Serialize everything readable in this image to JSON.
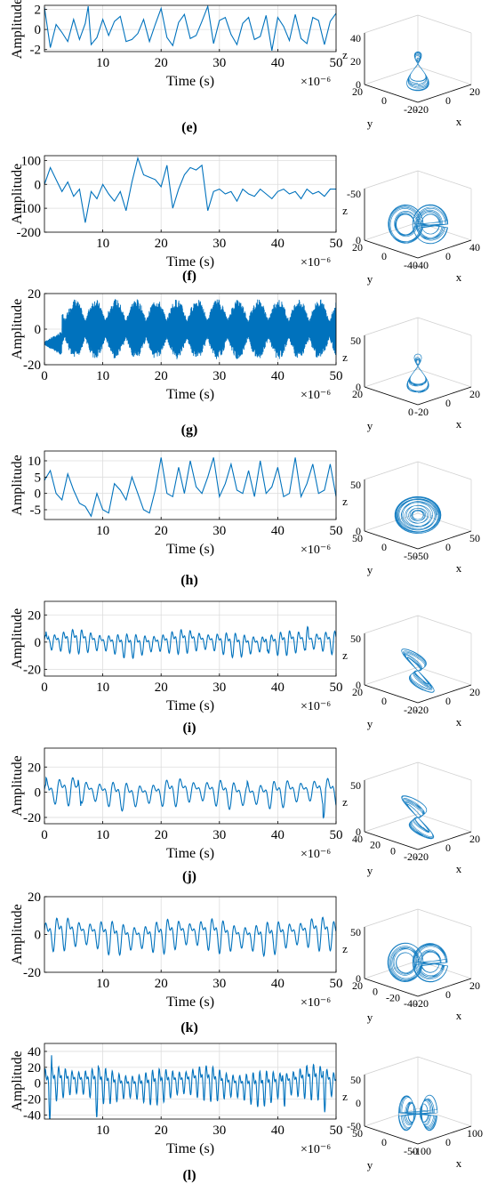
{
  "chart_data": [
    {
      "panel": "e",
      "label": "(e)",
      "type": "line",
      "xlabel": "Time (s)",
      "ylabel": "Amplitude",
      "x_exponent": "×10⁻⁶",
      "xlim": [
        0,
        50
      ],
      "ylim": [
        -2.2,
        2.4
      ],
      "xticks": [
        10,
        20,
        30,
        40,
        50
      ],
      "yticks": [
        2,
        0,
        -2
      ],
      "grid": true,
      "series_style": "spiky",
      "x": [
        0,
        1,
        2,
        3,
        4,
        5,
        6,
        7,
        7.5,
        8,
        9,
        10,
        11,
        12,
        13,
        14,
        15,
        16,
        17,
        18,
        19,
        20,
        21,
        22,
        23,
        24,
        25,
        26,
        27,
        28,
        29,
        30,
        31,
        32,
        33,
        34,
        35,
        36,
        37,
        38,
        39,
        40,
        41,
        42,
        43,
        44,
        45,
        46,
        47,
        48,
        49,
        50
      ],
      "y": [
        2.2,
        -1.8,
        0.5,
        -0.3,
        -1.2,
        1.0,
        -1.0,
        0.6,
        2.3,
        -1.5,
        -0.8,
        1.0,
        -0.6,
        0.8,
        1.3,
        -1.2,
        -1.0,
        -0.4,
        1.0,
        -1.2,
        0.5,
        2.1,
        -0.8,
        -1.6,
        0.7,
        1.5,
        -0.9,
        -0.6,
        0.8,
        2.3,
        -1.4,
        0.9,
        1.2,
        -0.5,
        -1.5,
        0.6,
        1.2,
        -1.0,
        -0.7,
        1.4,
        -2.1,
        1.2,
        0.3,
        -1.1,
        1.5,
        -0.9,
        -1.4,
        1.2,
        0.9,
        -1.5,
        0.8,
        1.6
      ]
    },
    {
      "panel": "f",
      "label": "(f)",
      "type": "line",
      "xlabel": "Time (s)",
      "ylabel": "Amplitude",
      "x_exponent": "×10⁻⁶",
      "xlim": [
        0,
        50
      ],
      "ylim": [
        -200,
        120
      ],
      "xticks": [
        10,
        20,
        30,
        40,
        50
      ],
      "yticks": [
        100,
        0,
        -100,
        -200
      ],
      "grid": true,
      "series_style": "spiky",
      "x": [
        0,
        1,
        2,
        3,
        4,
        5,
        6,
        7,
        8,
        9,
        10,
        11,
        12,
        13,
        14,
        15,
        16,
        17,
        18,
        19,
        20,
        21,
        22,
        23,
        24,
        25,
        26,
        27,
        28,
        29,
        30,
        31,
        32,
        33,
        34,
        35,
        36,
        37,
        38,
        39,
        40,
        41,
        42,
        43,
        44,
        45,
        46,
        47,
        48,
        49,
        50
      ],
      "y": [
        0,
        70,
        20,
        -30,
        10,
        -50,
        -20,
        -160,
        -30,
        -60,
        0,
        -40,
        -70,
        -30,
        -110,
        10,
        110,
        40,
        30,
        20,
        -10,
        80,
        -100,
        -20,
        40,
        70,
        60,
        80,
        -110,
        -30,
        -20,
        -40,
        -30,
        -70,
        -20,
        -40,
        -50,
        -20,
        -40,
        -60,
        -30,
        -20,
        -40,
        -30,
        -60,
        -20,
        -40,
        -30,
        -50,
        -20,
        -20
      ]
    },
    {
      "panel": "g",
      "label": "(g)",
      "type": "line",
      "xlabel": "Time (s)",
      "ylabel": "Amplitude",
      "x_exponent": "×10⁻⁶",
      "xlim": [
        0,
        50
      ],
      "ylim": [
        -20,
        20
      ],
      "xticks": [
        0,
        10,
        20,
        30,
        40,
        50
      ],
      "yticks": [
        20,
        0,
        -20
      ],
      "grid": true,
      "series_style": "dense",
      "amplitude": 17,
      "segments": [
        [
          0,
          3
        ],
        [
          3,
          6
        ],
        [
          6,
          12
        ],
        [
          12,
          18
        ],
        [
          18,
          24
        ],
        [
          24,
          31
        ],
        [
          31,
          40
        ],
        [
          40,
          50
        ]
      ]
    },
    {
      "panel": "h",
      "label": "(h)",
      "type": "line",
      "xlabel": "Time (s)",
      "ylabel": "Amplitude",
      "x_exponent": "×10⁻⁶",
      "xlim": [
        0,
        50
      ],
      "ylim": [
        -8,
        13
      ],
      "xticks": [
        10,
        20,
        30,
        40,
        50
      ],
      "yticks": [
        10,
        5,
        0,
        -5
      ],
      "grid": true,
      "series_style": "spiky",
      "x": [
        0,
        1,
        2,
        3,
        4,
        5,
        6,
        7,
        8,
        9,
        10,
        11,
        12,
        13,
        14,
        15,
        16,
        17,
        18,
        19,
        20,
        21,
        22,
        23,
        24,
        25,
        26,
        27,
        28,
        29,
        30,
        31,
        32,
        33,
        34,
        35,
        36,
        37,
        38,
        39,
        40,
        41,
        42,
        43,
        44,
        45,
        46,
        47,
        48,
        49,
        50
      ],
      "y": [
        4,
        7,
        0,
        -2,
        6,
        1,
        -3,
        -4,
        -7,
        0,
        -5,
        -6,
        3,
        1,
        -2,
        5,
        0,
        -5,
        -6,
        1,
        11,
        0,
        -1,
        8,
        0,
        10,
        2,
        0,
        5,
        11,
        -1,
        3,
        9,
        1,
        0,
        7,
        -1,
        10,
        0,
        2,
        8,
        -1,
        0,
        11,
        -1,
        3,
        9,
        0,
        1,
        9,
        -1
      ]
    },
    {
      "panel": "i",
      "label": "(i)",
      "type": "line",
      "xlabel": "Time (s)",
      "ylabel": "Amplitude",
      "x_exponent": "×10⁻⁶",
      "xlim": [
        0,
        50
      ],
      "ylim": [
        -25,
        30
      ],
      "xticks": [
        0,
        10,
        20,
        30,
        40,
        50
      ],
      "yticks": [
        20,
        0,
        -20
      ],
      "grid": true,
      "series_style": "wave",
      "period": 1.55,
      "amplitude": 12,
      "burst_at": [
        0.5,
        38,
        45
      ]
    },
    {
      "panel": "j",
      "label": "(j)",
      "type": "line",
      "xlabel": "Time (s)",
      "ylabel": "Amplitude",
      "x_exponent": "×10⁻⁶",
      "xlim": [
        0,
        50
      ],
      "ylim": [
        -25,
        35
      ],
      "xticks": [
        0,
        10,
        20,
        30,
        40,
        50
      ],
      "yticks": [
        20,
        0,
        -20
      ],
      "grid": true,
      "series_style": "wave",
      "period": 2.3,
      "amplitude": 15,
      "burst_at": [
        0.5,
        6,
        35,
        48
      ]
    },
    {
      "panel": "k",
      "label": "(k)",
      "type": "line",
      "xlabel": "Time (s)",
      "ylabel": "Amplitude",
      "x_exponent": "×10⁻⁶",
      "xlim": [
        0,
        50
      ],
      "ylim": [
        -20,
        20
      ],
      "xticks": [
        10,
        20,
        30,
        40,
        50
      ],
      "yticks": [
        20,
        0,
        -20
      ],
      "grid": true,
      "series_style": "wave",
      "period": 1.9,
      "amplitude": 12,
      "burst_at": []
    },
    {
      "panel": "l",
      "label": "(l)",
      "type": "line",
      "xlabel": "Time (s)",
      "ylabel": "Amplitude",
      "x_exponent": "×10⁻⁶",
      "xlim": [
        0,
        50
      ],
      "ylim": [
        -45,
        50
      ],
      "xticks": [
        10,
        20,
        30,
        40,
        50
      ],
      "yticks": [
        40,
        20,
        0,
        -20,
        -40
      ],
      "grid": true,
      "series_style": "wave",
      "period": 1.15,
      "amplitude": 30,
      "burst_at": [
        1,
        9,
        41,
        48
      ]
    }
  ],
  "phase_portraits": [
    {
      "panel": "e",
      "type": "attractor-3d",
      "axes": [
        "x",
        "y",
        "z"
      ],
      "z_ticks": [
        "0",
        "20",
        "40"
      ],
      "x_ticks": [
        "-20",
        "0",
        "20"
      ],
      "y_ticks": [
        "20",
        "0",
        "-20"
      ],
      "shape": "narrow"
    },
    {
      "panel": "f",
      "type": "attractor-3d",
      "axes": [
        "x",
        "y",
        "z"
      ],
      "z_ticks": [
        "0",
        "-50"
      ],
      "x_ticks": [
        "-40",
        "0",
        "40"
      ],
      "y_ticks": [
        "20",
        "0",
        "-40"
      ],
      "shape": "wide"
    },
    {
      "panel": "g",
      "type": "attractor-3d",
      "axes": [
        "x",
        "y",
        "z"
      ],
      "z_ticks": [
        "0",
        "50"
      ],
      "x_ticks": [
        "-20",
        "0",
        "20"
      ],
      "y_ticks": [
        "20",
        "0"
      ],
      "shape": "narrow"
    },
    {
      "panel": "h",
      "type": "attractor-3d",
      "axes": [
        "x",
        "y",
        "z"
      ],
      "z_ticks": [
        "0",
        "50"
      ],
      "x_ticks": [
        "-50",
        "0",
        "50"
      ],
      "y_ticks": [
        "50",
        "0",
        "-50"
      ],
      "shape": "open"
    },
    {
      "panel": "i",
      "type": "attractor-3d",
      "axes": [
        "x",
        "y",
        "z"
      ],
      "z_ticks": [
        "0",
        "50"
      ],
      "x_ticks": [
        "-20",
        "0",
        "20"
      ],
      "y_ticks": [
        "20",
        "0",
        "-20"
      ],
      "shape": "loop"
    },
    {
      "panel": "j",
      "type": "attractor-3d",
      "axes": [
        "x",
        "y",
        "z"
      ],
      "z_ticks": [
        "0",
        "50"
      ],
      "x_ticks": [
        "-20",
        "0",
        "20"
      ],
      "y_ticks": [
        "40",
        "20",
        "0",
        "-20"
      ],
      "shape": "loop"
    },
    {
      "panel": "k",
      "type": "attractor-3d",
      "axes": [
        "x",
        "y",
        "z"
      ],
      "z_ticks": [
        "0",
        "50"
      ],
      "x_ticks": [
        "-20",
        "0",
        "20"
      ],
      "y_ticks": [
        "20",
        "0",
        "-20",
        "-40"
      ],
      "shape": "wide"
    },
    {
      "panel": "l",
      "type": "attractor-3d",
      "axes": [
        "x",
        "y",
        "z"
      ],
      "z_ticks": [
        "-50",
        "0",
        "50"
      ],
      "x_ticks": [
        "-100",
        "0",
        "100"
      ],
      "y_ticks": [
        "50",
        "0",
        "-50"
      ],
      "shape": "butterfly"
    }
  ],
  "colors": {
    "series": "#0072BD",
    "axis": "#000000",
    "grid": "#dddddd"
  }
}
